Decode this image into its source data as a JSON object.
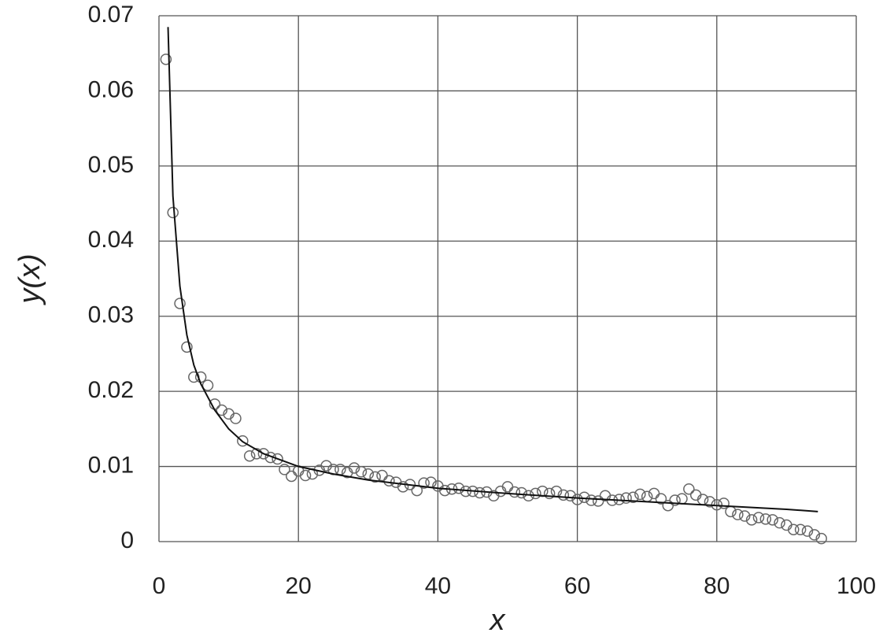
{
  "chart_data": {
    "type": "scatter",
    "x_label": "x",
    "y_label": "y(x)",
    "xlim": [
      0,
      100
    ],
    "xticks": [
      0,
      20,
      40,
      60,
      80,
      100
    ],
    "ylim": [
      0,
      0.07
    ],
    "yticks": [
      0,
      0.01,
      0.02,
      0.03,
      0.04,
      0.05,
      0.06,
      0.07
    ],
    "grid": true,
    "series": [
      {
        "style": "markers",
        "color": "#666666",
        "x": [
          1,
          2,
          3,
          4,
          5,
          6,
          7,
          8,
          9,
          10,
          11,
          12,
          13,
          14,
          15,
          16,
          17,
          18,
          19,
          20,
          21,
          22,
          23,
          24,
          25,
          26,
          27,
          28,
          29,
          30,
          31,
          32,
          33,
          34,
          35,
          36,
          37,
          38,
          39,
          40,
          41,
          42,
          43,
          44,
          45,
          46,
          47,
          48,
          49,
          50,
          51,
          52,
          53,
          54,
          55,
          56,
          57,
          58,
          59,
          60,
          61,
          62,
          63,
          64,
          65,
          66,
          67,
          68,
          69,
          70,
          71,
          72,
          73,
          74,
          75,
          76,
          77,
          78,
          79,
          80,
          81,
          82,
          83,
          84,
          85,
          86,
          87,
          88,
          89,
          90,
          91,
          92,
          93,
          94,
          95
        ],
        "values": [
          0.0642,
          0.0438,
          0.0317,
          0.0259,
          0.0219,
          0.0219,
          0.0208,
          0.0183,
          0.0175,
          0.017,
          0.0164,
          0.0134,
          0.0114,
          0.0117,
          0.0117,
          0.0112,
          0.011,
          0.0096,
          0.0087,
          0.0094,
          0.0088,
          0.009,
          0.0095,
          0.0101,
          0.0096,
          0.0096,
          0.0092,
          0.0098,
          0.0093,
          0.009,
          0.0086,
          0.0088,
          0.0081,
          0.0079,
          0.0073,
          0.0076,
          0.0068,
          0.0078,
          0.0079,
          0.0074,
          0.0068,
          0.007,
          0.0071,
          0.0067,
          0.0067,
          0.0065,
          0.0066,
          0.0061,
          0.0067,
          0.0073,
          0.0066,
          0.0065,
          0.0061,
          0.0064,
          0.0067,
          0.0064,
          0.0067,
          0.0062,
          0.0061,
          0.0056,
          0.0059,
          0.0055,
          0.0054,
          0.0061,
          0.0055,
          0.0056,
          0.0058,
          0.0059,
          0.0063,
          0.006,
          0.0064,
          0.0057,
          0.0048,
          0.0055,
          0.0057,
          0.007,
          0.0062,
          0.0056,
          0.0053,
          0.0049,
          0.0051,
          0.004,
          0.0036,
          0.0034,
          0.0029,
          0.0032,
          0.003,
          0.0029,
          0.0025,
          0.0022,
          0.0016,
          0.0016,
          0.0014,
          0.0009,
          0.0004
        ]
      },
      {
        "style": "line",
        "color": "#111111",
        "x": [
          1.3,
          2,
          3,
          4,
          5,
          6,
          8,
          10,
          12,
          15,
          20,
          25,
          30,
          40,
          50,
          60,
          70,
          80,
          90,
          94.5
        ],
        "values": [
          0.0685,
          0.046,
          0.034,
          0.0275,
          0.0235,
          0.021,
          0.0175,
          0.015,
          0.0133,
          0.0117,
          0.01,
          0.009,
          0.0082,
          0.0071,
          0.0064,
          0.0058,
          0.0053,
          0.0048,
          0.0043,
          0.004
        ]
      }
    ]
  }
}
